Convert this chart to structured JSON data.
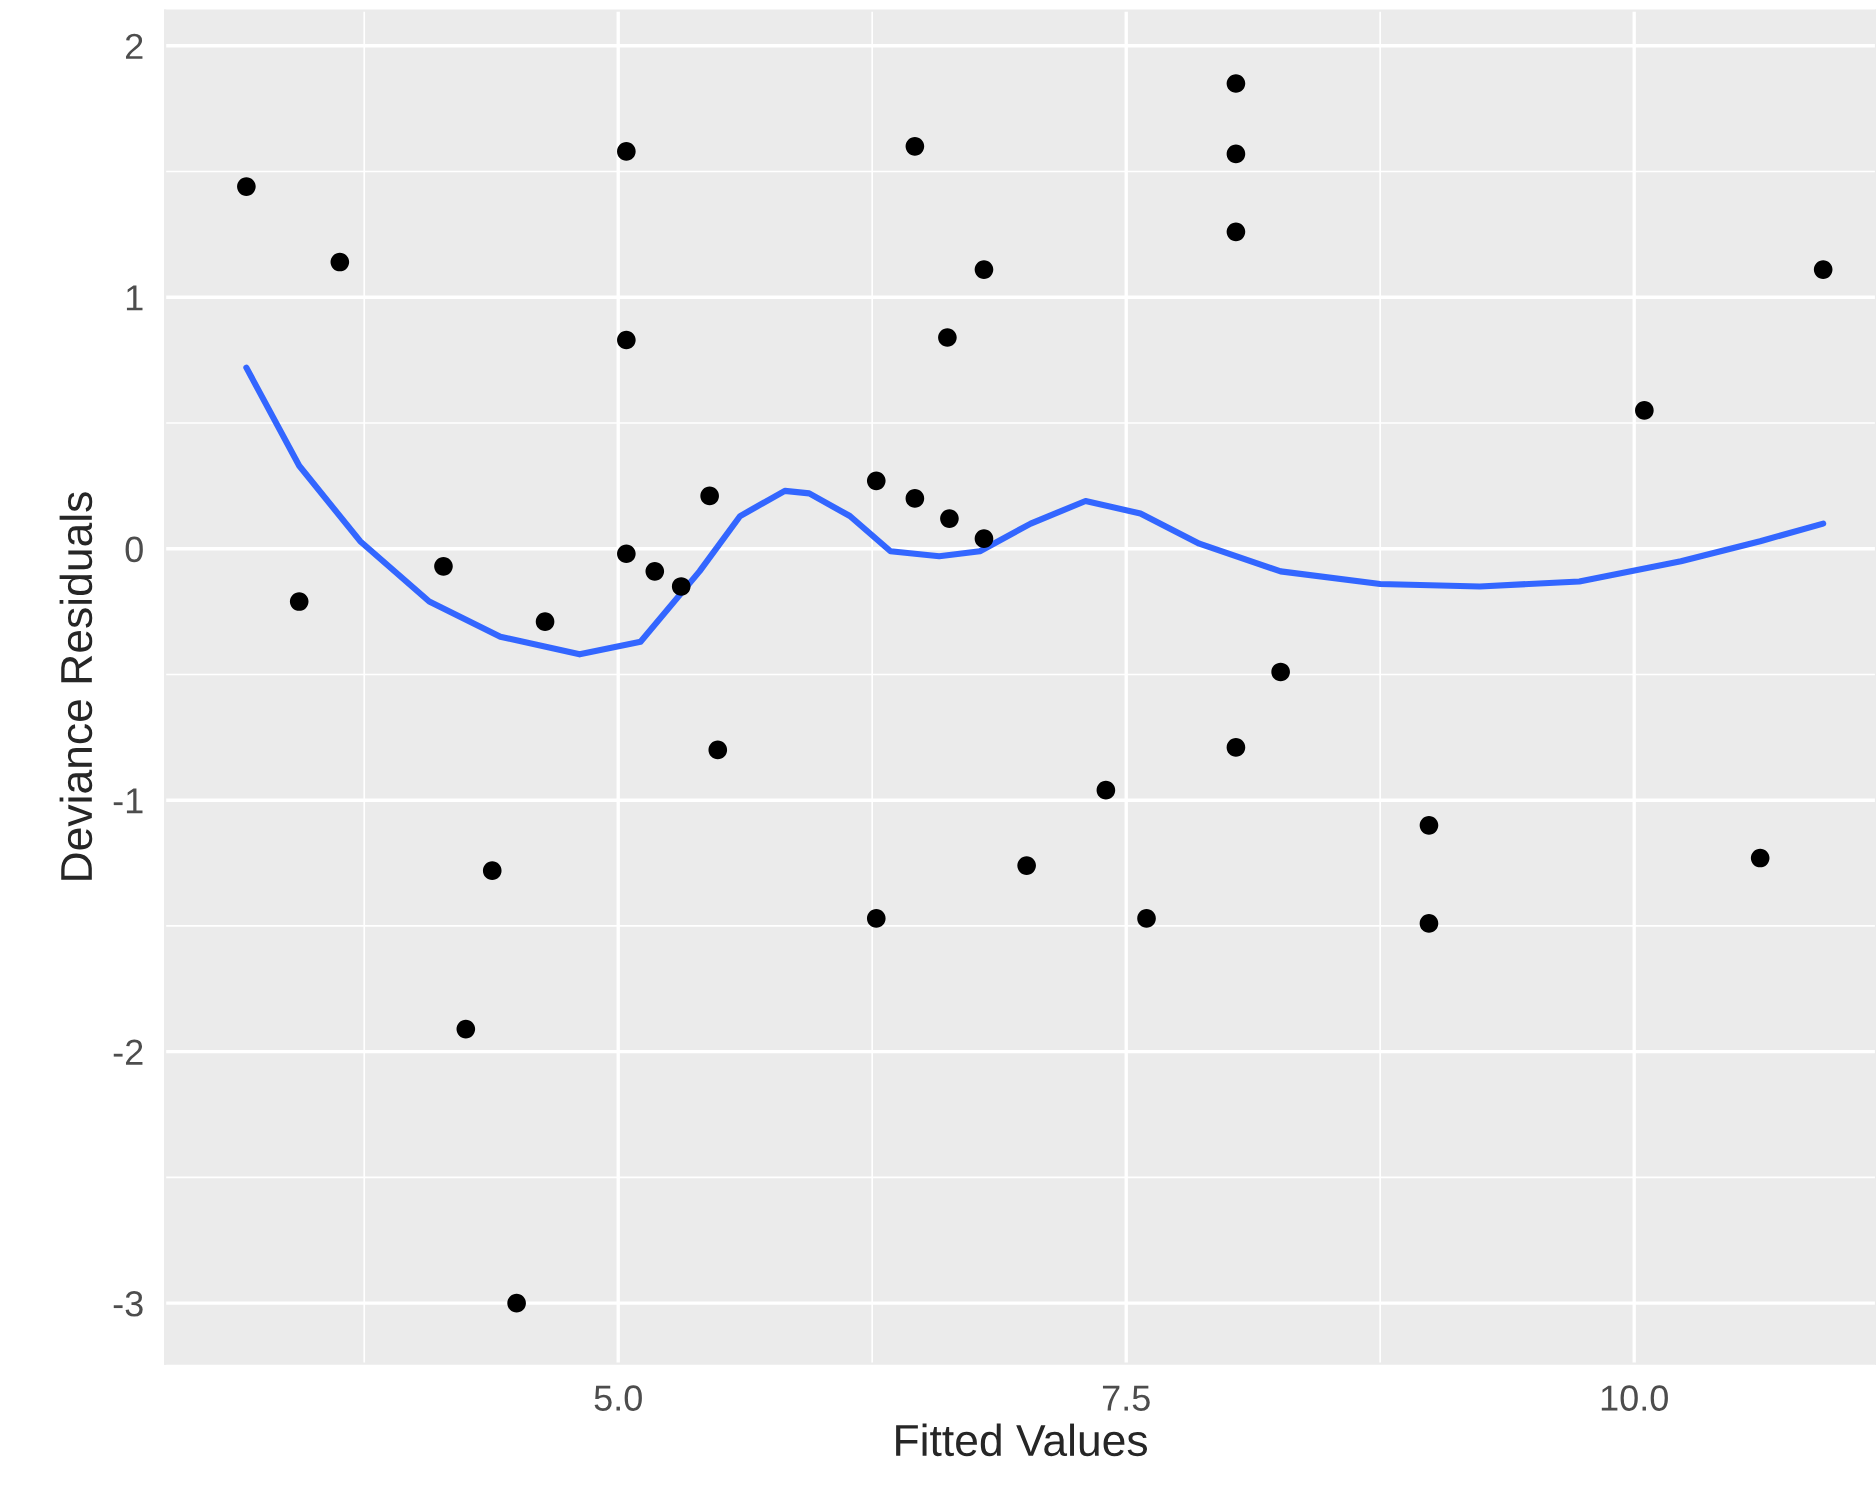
{
  "chart_data": {
    "type": "scatter",
    "xlabel": "Fitted Values",
    "ylabel": "Deviance Residuals",
    "xlim": [
      2.77,
      11.19
    ],
    "ylim": [
      -3.24,
      2.14
    ],
    "xticks": [
      {
        "value": 5,
        "label": "5.0"
      },
      {
        "value": 7.5,
        "label": "7.5"
      },
      {
        "value": 10,
        "label": "10.0"
      }
    ],
    "yticks": [
      {
        "value": -3,
        "label": "-3"
      },
      {
        "value": -2,
        "label": "-2"
      },
      {
        "value": -1,
        "label": "-1"
      },
      0,
      1,
      2
    ],
    "grid": true,
    "series": [
      {
        "color": "#000000",
        "marker": "circle",
        "x": [
          3.17,
          3.43,
          3.63,
          4.14,
          4.64,
          4.38,
          4.25,
          4.5,
          5.04,
          5.04,
          5.04,
          5.18,
          5.31,
          5.45,
          5.49,
          6.27,
          6.27,
          6.46,
          6.46,
          6.63,
          6.62,
          6.8,
          6.8,
          7.01,
          7.4,
          7.6,
          8.04,
          8.04,
          8.04,
          8.04,
          8.26,
          8.99,
          8.99,
          10.05,
          10.62,
          10.93
        ],
        "values": [
          1.44,
          -0.21,
          1.14,
          -0.07,
          -0.29,
          -1.28,
          -1.91,
          -3.0,
          1.58,
          0.83,
          -0.02,
          -0.09,
          -0.15,
          0.21,
          -0.8,
          0.27,
          -1.47,
          0.2,
          1.6,
          0.12,
          0.84,
          0.04,
          1.11,
          -1.26,
          -0.96,
          -1.47,
          1.85,
          1.57,
          1.26,
          -0.79,
          -0.49,
          -1.1,
          -1.49,
          0.55,
          -1.23,
          1.11
        ]
      },
      {
        "type": "line",
        "color": "#3366ff",
        "x": [
          3.17,
          3.43,
          3.73,
          4.07,
          4.42,
          4.81,
          5.11,
          5.4,
          5.6,
          5.82,
          5.94,
          6.14,
          6.34,
          6.58,
          6.78,
          7.03,
          7.3,
          7.57,
          7.86,
          8.26,
          8.75,
          9.24,
          9.73,
          10.23,
          10.62,
          10.93
        ],
        "values": [
          0.72,
          0.33,
          0.03,
          -0.21,
          -0.35,
          -0.42,
          -0.37,
          -0.09,
          0.13,
          0.23,
          0.22,
          0.13,
          -0.01,
          -0.03,
          -0.01,
          0.1,
          0.19,
          0.14,
          0.02,
          -0.09,
          -0.14,
          -0.15,
          -0.13,
          -0.05,
          0.03,
          0.1
        ]
      }
    ]
  }
}
